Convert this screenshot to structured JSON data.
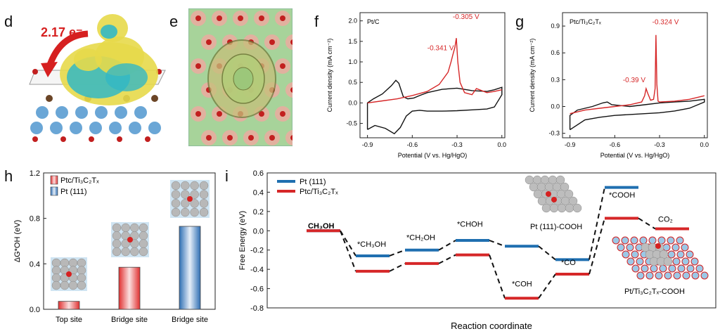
{
  "panels": {
    "d": {
      "label": "d",
      "charge": "2.17 e⁻"
    },
    "e": {
      "label": "e"
    },
    "f": {
      "label": "f"
    },
    "g": {
      "label": "g"
    },
    "h": {
      "label": "h"
    },
    "i": {
      "label": "i"
    }
  },
  "chart_data": [
    {
      "id": "f",
      "type": "line",
      "title": "Pt/C",
      "xlabel": "Potential (V vs. Hg/HgO)",
      "ylabel": "Current density (mA cm⁻²)",
      "xlim": [
        -0.95,
        0.02
      ],
      "ylim": [
        -0.85,
        2.2
      ],
      "xticks": [
        "-0.9",
        "-0.6",
        "-0.3",
        "0.0"
      ],
      "yticks": [
        "-0.5",
        "0.0",
        "0.5",
        "1.0",
        "1.5",
        "2.0"
      ],
      "annotations": [
        "-0.341 V",
        "-0.305 V"
      ],
      "series": [
        {
          "name": "black",
          "color": "#111111",
          "x": [
            -0.9,
            -0.9,
            -0.86,
            -0.8,
            -0.74,
            -0.71,
            -0.69,
            -0.66,
            -0.63,
            -0.59,
            -0.55,
            -0.5,
            -0.4,
            -0.3,
            -0.2,
            -0.1,
            -0.05,
            0.0,
            0.0,
            -0.05,
            -0.1,
            -0.2,
            -0.3,
            -0.4,
            -0.5,
            -0.55,
            -0.6,
            -0.64,
            -0.68,
            -0.72,
            -0.78,
            -0.85,
            -0.9
          ],
          "y": [
            -0.65,
            0.0,
            0.1,
            0.22,
            0.42,
            0.55,
            0.48,
            0.15,
            0.1,
            0.12,
            0.18,
            0.25,
            0.33,
            0.36,
            0.3,
            0.28,
            0.32,
            0.38,
            0.2,
            -0.1,
            -0.15,
            -0.17,
            -0.19,
            -0.2,
            -0.2,
            -0.18,
            -0.2,
            -0.32,
            -0.6,
            -0.75,
            -0.62,
            -0.55,
            -0.65
          ]
        },
        {
          "name": "red",
          "color": "#d62728",
          "x": [
            -0.9,
            -0.8,
            -0.7,
            -0.6,
            -0.5,
            -0.42,
            -0.36,
            -0.34,
            -0.33,
            -0.315,
            -0.305,
            -0.295,
            -0.28,
            -0.25,
            -0.2,
            -0.17,
            -0.15,
            -0.1,
            -0.05,
            0.0
          ],
          "y": [
            0.0,
            0.05,
            0.1,
            0.18,
            0.28,
            0.45,
            0.75,
            1.0,
            1.15,
            1.35,
            1.58,
            1.0,
            0.5,
            0.25,
            0.2,
            0.35,
            0.32,
            0.25,
            0.28,
            0.32
          ]
        }
      ]
    },
    {
      "id": "g",
      "type": "line",
      "title": "Ptc/Ti₃C₂Tₓ",
      "xlabel": "Potential (V vs. Hg/HgO)",
      "ylabel": "Current density (mA cm⁻²)",
      "xlim": [
        -0.95,
        0.02
      ],
      "ylim": [
        -0.35,
        1.05
      ],
      "xticks": [
        "-0.9",
        "-0.6",
        "-0.3",
        "0.0"
      ],
      "yticks": [
        "-0.3",
        "0.0",
        "0.3",
        "0.6",
        "0.9"
      ],
      "annotations": [
        "-0.39 V",
        "-0.324 V"
      ],
      "series": [
        {
          "name": "black",
          "color": "#111111",
          "x": [
            -0.9,
            -0.9,
            -0.85,
            -0.75,
            -0.68,
            -0.65,
            -0.62,
            -0.5,
            -0.4,
            -0.3,
            -0.2,
            -0.1,
            0.0,
            0.0,
            -0.1,
            -0.2,
            -0.3,
            -0.4,
            -0.5,
            -0.6,
            -0.7,
            -0.8,
            -0.9
          ],
          "y": [
            -0.26,
            -0.1,
            -0.04,
            0.0,
            0.04,
            0.05,
            0.02,
            0.0,
            0.02,
            0.04,
            0.05,
            0.06,
            0.08,
            0.05,
            -0.02,
            -0.05,
            -0.07,
            -0.08,
            -0.09,
            -0.1,
            -0.12,
            -0.15,
            -0.26
          ]
        },
        {
          "name": "red",
          "color": "#d62728",
          "x": [
            -0.9,
            -0.8,
            -0.7,
            -0.6,
            -0.5,
            -0.42,
            -0.4,
            -0.39,
            -0.38,
            -0.36,
            -0.34,
            -0.33,
            -0.324,
            -0.318,
            -0.31,
            -0.3,
            -0.2,
            -0.1,
            0.0
          ],
          "y": [
            -0.08,
            -0.04,
            -0.02,
            0.0,
            0.02,
            0.05,
            0.12,
            0.2,
            0.15,
            0.07,
            0.08,
            0.2,
            0.8,
            0.25,
            0.06,
            0.05,
            0.06,
            0.08,
            0.12
          ]
        }
      ]
    },
    {
      "id": "h",
      "type": "bar",
      "ylabel": "ΔG*OH (eV)",
      "categories": [
        "Top site",
        "Bridge site",
        "Bridge site"
      ],
      "values": [
        0.07,
        0.37,
        0.73
      ],
      "series_of_bar": [
        "Ptc/Ti₃C₂Tₓ",
        "Ptc/Ti₃C₂Tₓ",
        "Pt (111)"
      ],
      "ylim": [
        0.0,
        1.2
      ],
      "yticks": [
        "0.0",
        "0.4",
        "0.8",
        "1.2"
      ],
      "legend": [
        "Ptc/Ti₃C₂Tₓ",
        "Pt (111)"
      ]
    },
    {
      "id": "i",
      "type": "line",
      "xlabel": "Reaction coordinate",
      "ylabel": "Free Energy (eV)",
      "ylim": [
        -0.8,
        0.6
      ],
      "yticks": [
        "-0.8",
        "-0.6",
        "-0.4",
        "-0.2",
        "0.0",
        "0.2",
        "0.4",
        "0.6"
      ],
      "legend": [
        "Pt (111)",
        "Ptc/Ti₃C₂Tₓ"
      ],
      "step_labels": [
        "CH₃OH",
        "*CH₃OH",
        "*CH₂OH",
        "*CHOH",
        "*COH",
        "*CO",
        "*COOH",
        "CO₂"
      ],
      "insets": [
        "Pt (111)-COOH",
        "Pt/Ti₃C₂Tₓ-COOH"
      ],
      "series": [
        {
          "name": "Pt (111)",
          "color": "#1f6fb0",
          "levels": [
            0.0,
            -0.26,
            -0.2,
            -0.1,
            -0.16,
            -0.3,
            0.45,
            null
          ]
        },
        {
          "name": "Ptc/Ti₃C₂Tₓ",
          "color": "#d62728",
          "levels": [
            0.0,
            -0.42,
            -0.34,
            -0.25,
            -0.7,
            -0.45,
            0.13,
            0.02
          ]
        }
      ]
    }
  ]
}
